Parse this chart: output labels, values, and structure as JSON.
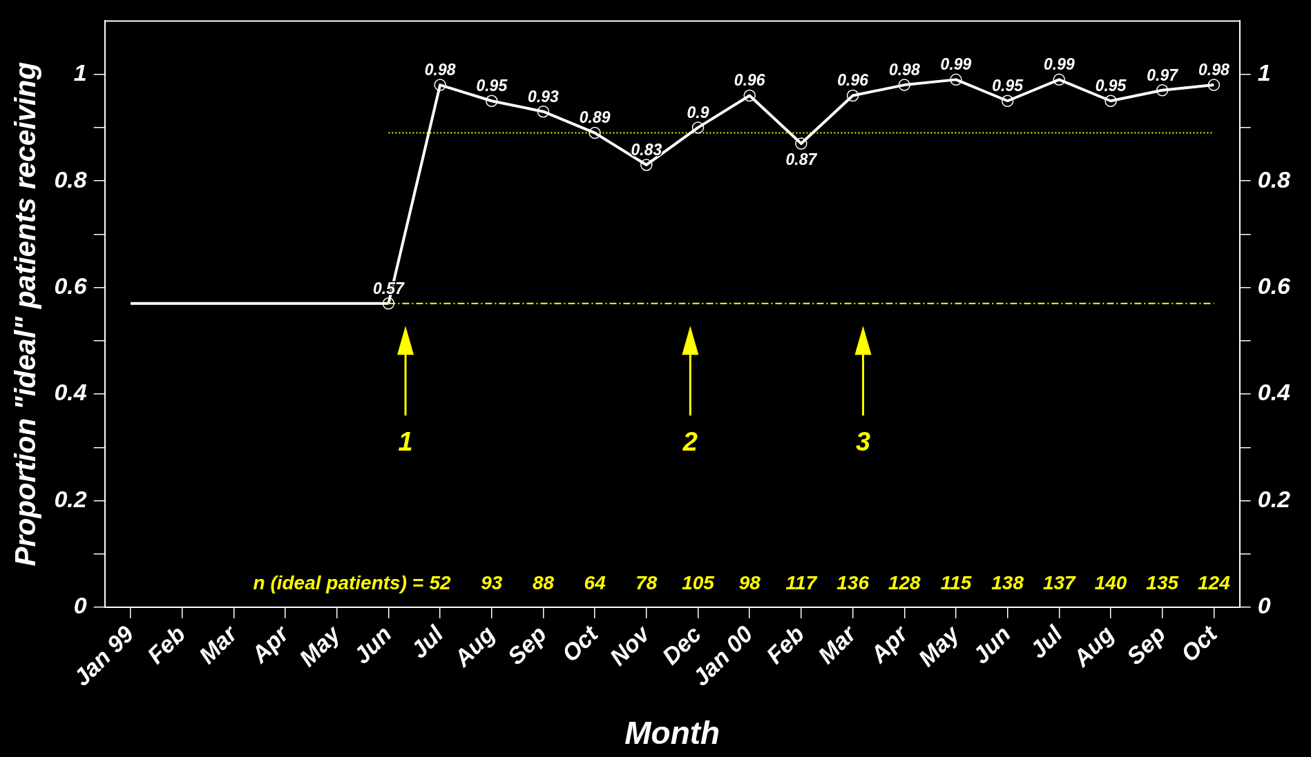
{
  "chart_data": {
    "type": "line",
    "xlabel": "Month",
    "ylabel": "Proportion \"ideal\" patients receiving",
    "categories": [
      "Jan 99",
      "Feb",
      "Mar",
      "Apr",
      "May",
      "Jun",
      "Jul",
      "Aug",
      "Sep",
      "Oct",
      "Nov",
      "Dec",
      "Jan 00",
      "Feb",
      "Mar",
      "Apr",
      "May",
      "Jun",
      "Jul",
      "Aug",
      "Sep",
      "Oct"
    ],
    "series": [
      {
        "color": "#ffffff",
        "marker": "none",
        "values": [
          0.57,
          0.57,
          0.57,
          0.57,
          0.57,
          0.57,
          null,
          null,
          null,
          null,
          null,
          null,
          null,
          null,
          null,
          null,
          null,
          null,
          null,
          null,
          null,
          null
        ]
      },
      {
        "color": "#ffffff",
        "marker": "circle",
        "values": [
          null,
          null,
          null,
          null,
          null,
          0.57,
          0.98,
          0.95,
          0.93,
          0.89,
          0.83,
          0.9,
          0.96,
          0.87,
          0.96,
          0.98,
          0.99,
          0.95,
          0.99,
          0.95,
          0.97,
          0.98
        ],
        "value_labels": [
          null,
          null,
          null,
          null,
          null,
          "0.57",
          "0.98",
          "0.95",
          "0.93",
          "0.89",
          "0.83",
          "0.9",
          "0.96",
          "0.87",
          "0.96",
          "0.98",
          "0.99",
          "0.95",
          "0.99",
          "0.95",
          "0.97",
          "0.98"
        ]
      },
      {
        "color": "#ffff00",
        "marker": "none",
        "line_style": "dashed",
        "values": [
          null,
          null,
          null,
          null,
          null,
          0.57,
          0.57,
          0.57,
          0.57,
          0.57,
          0.57,
          0.57,
          0.57,
          0.57,
          0.57,
          0.57,
          0.57,
          0.57,
          0.57,
          0.57,
          0.57,
          0.57
        ]
      },
      {
        "color": "#ffff00",
        "marker": "none",
        "line_style": "dotted",
        "values": [
          null,
          null,
          null,
          null,
          null,
          0.89,
          0.89,
          0.89,
          0.89,
          0.89,
          0.89,
          0.89,
          0.89,
          0.89,
          0.89,
          0.89,
          0.89,
          0.89,
          0.89,
          0.89,
          0.89,
          0.89
        ]
      }
    ],
    "ylim": [
      0,
      1.1
    ],
    "yticks": [
      0,
      {
        "value": 0.1,
        "label": null
      },
      0.2,
      {
        "value": 0.3,
        "label": null
      },
      0.4,
      {
        "value": 0.5,
        "label": null
      },
      0.6,
      {
        "value": 0.7,
        "label": null
      },
      0.8,
      {
        "value": 0.9,
        "label": null
      },
      1
    ],
    "y2lim": [
      0,
      1.1
    ],
    "y2ticks": [
      0,
      {
        "value": 0.1,
        "label": null
      },
      0.2,
      {
        "value": 0.3,
        "label": null
      },
      0.4,
      {
        "value": 0.5,
        "label": null
      },
      0.6,
      {
        "value": 0.7,
        "label": null
      },
      0.8,
      {
        "value": 0.9,
        "label": null
      },
      1
    ],
    "grid": false,
    "legend": false,
    "annotations": [
      "n (ideal patients) =",
      "52",
      "93",
      "88",
      "64",
      "78",
      "105",
      "98",
      "117",
      "136",
      "128",
      "115",
      "138",
      "137",
      "140",
      "135",
      "124",
      "1",
      "2",
      "3"
    ]
  }
}
